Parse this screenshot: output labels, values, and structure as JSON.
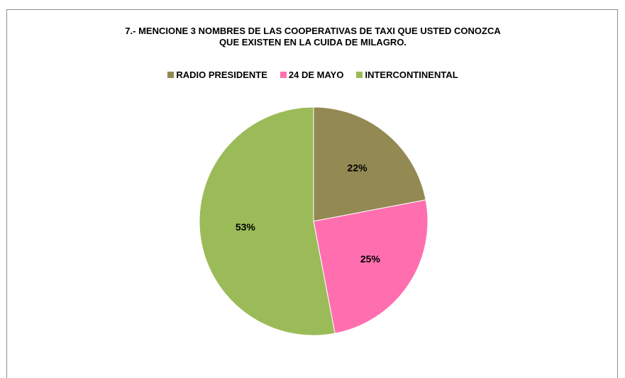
{
  "chart_data": {
    "type": "pie",
    "title_lines": [
      "7.- MENCIONE 3 NOMBRES DE LAS COOPERATIVAS DE TAXI QUE USTED CONOZCA",
      "QUE EXISTEN EN LA CUIDA DE MILAGRO."
    ],
    "legend_position": "top",
    "slices": [
      {
        "name": "RADIO PRESIDENTE",
        "value": 22,
        "label": "22%",
        "color": "#938953"
      },
      {
        "name": "24 DE MAYO",
        "value": 25,
        "label": "25%",
        "color": "#ff6fb0"
      },
      {
        "name": "INTERCONTINENTAL",
        "value": 53,
        "label": "53%",
        "color": "#9bbb59"
      }
    ]
  }
}
